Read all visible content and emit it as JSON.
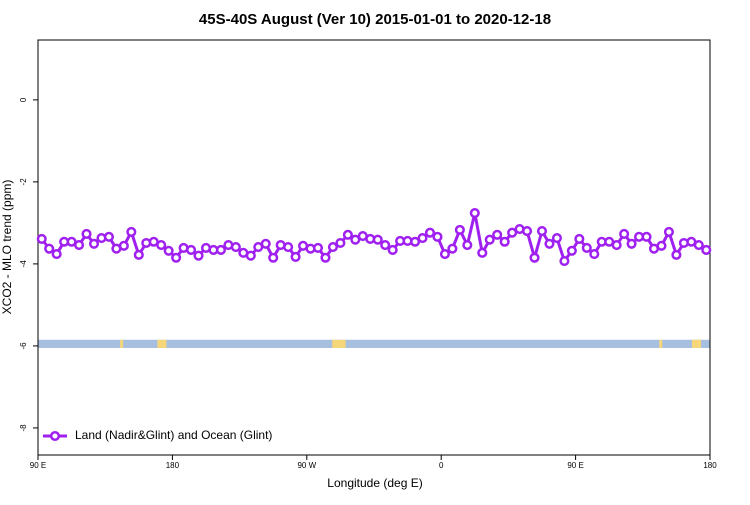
{
  "chart_data": {
    "type": "line",
    "title": "45S-40S August (Ver 10)   2015-01-01 to 2020-12-18",
    "xlabel": "Longitude (deg E)",
    "ylabel": "XCO2 - MLO trend (ppm)",
    "xlim": [
      90,
      540
    ],
    "ylim": [
      -8.66,
      1.46
    ],
    "xticks": [
      {
        "value": 90,
        "label": "90 E"
      },
      180,
      {
        "value": 270,
        "label": "90 W"
      },
      {
        "value": 360,
        "label": "0"
      },
      {
        "value": 450,
        "label": "90 E"
      },
      {
        "value": 540,
        "label": "180"
      }
    ],
    "yticks": [
      0,
      -2,
      -4,
      -6,
      -8
    ],
    "legend": "bottom-left",
    "x": [
      92.5,
      97.5,
      102.5,
      107.5,
      112.5,
      117.5,
      122.5,
      127.5,
      132.5,
      137.5,
      142.5,
      147.5,
      152.5,
      157.5,
      162.5,
      167.5,
      172.5,
      177.5,
      182.5,
      187.5,
      192.5,
      197.5,
      202.5,
      207.5,
      212.5,
      217.5,
      222.5,
      227.5,
      232.5,
      237.5,
      242.5,
      247.5,
      252.5,
      257.5,
      262.5,
      267.5,
      272.5,
      277.5,
      282.5,
      287.5,
      292.5,
      297.5,
      302.5,
      307.5,
      312.5,
      317.5,
      322.5,
      327.5,
      332.5,
      337.5,
      342.5,
      347.5,
      352.5,
      357.5,
      362.5,
      367.5,
      372.5,
      377.5,
      382.5,
      387.5,
      392.5,
      397.5,
      402.5,
      407.5,
      412.5,
      417.5,
      422.5,
      427.5,
      432.5,
      437.5,
      442.5,
      447.5,
      452.5,
      457.5,
      462.5,
      467.5,
      472.5,
      477.5,
      482.5,
      487.5,
      492.5,
      497.5,
      502.5,
      507.5,
      512.5,
      517.5,
      522.5,
      527.5,
      532.5,
      537.5
    ],
    "series": [
      {
        "name": "Land (Nadir&Glint) and Ocean (Glint)",
        "color": "#a020f0",
        "values": [
          -3.39,
          -3.63,
          -3.76,
          -3.46,
          -3.46,
          -3.54,
          -3.27,
          -3.51,
          -3.37,
          -3.34,
          -3.63,
          -3.56,
          -3.22,
          -3.78,
          -3.49,
          -3.46,
          -3.54,
          -3.68,
          -3.85,
          -3.61,
          -3.66,
          -3.8,
          -3.61,
          -3.66,
          -3.66,
          -3.54,
          -3.59,
          -3.73,
          -3.8,
          -3.59,
          -3.51,
          -3.85,
          -3.54,
          -3.59,
          -3.83,
          -3.56,
          -3.63,
          -3.61,
          -3.85,
          -3.59,
          -3.49,
          -3.29,
          -3.41,
          -3.32,
          -3.39,
          -3.41,
          -3.54,
          -3.66,
          -3.44,
          -3.44,
          -3.46,
          -3.37,
          -3.24,
          -3.34,
          -3.76,
          -3.63,
          -3.17,
          -3.54,
          -2.76,
          -3.73,
          -3.41,
          -3.29,
          -3.46,
          -3.24,
          -3.15,
          -3.2,
          -3.85,
          -3.2,
          -3.51,
          -3.37,
          -3.93,
          -3.68,
          -3.39,
          -3.61,
          -3.76,
          -3.46,
          -3.46,
          -3.54,
          -3.27,
          -3.51,
          -3.34,
          -3.34,
          -3.63,
          -3.56,
          -3.22,
          -3.78,
          -3.49,
          -3.46,
          -3.54,
          -3.66
        ]
      }
    ],
    "strip": {
      "ylim": [
        -6.05,
        -5.85
      ],
      "ocean_color": "#a7bfdf",
      "land_color": "#f5d77a",
      "land_spans": [
        [
          145,
          147
        ],
        [
          170,
          176
        ],
        [
          287,
          296
        ],
        [
          506,
          508
        ],
        [
          528,
          534
        ]
      ]
    }
  }
}
